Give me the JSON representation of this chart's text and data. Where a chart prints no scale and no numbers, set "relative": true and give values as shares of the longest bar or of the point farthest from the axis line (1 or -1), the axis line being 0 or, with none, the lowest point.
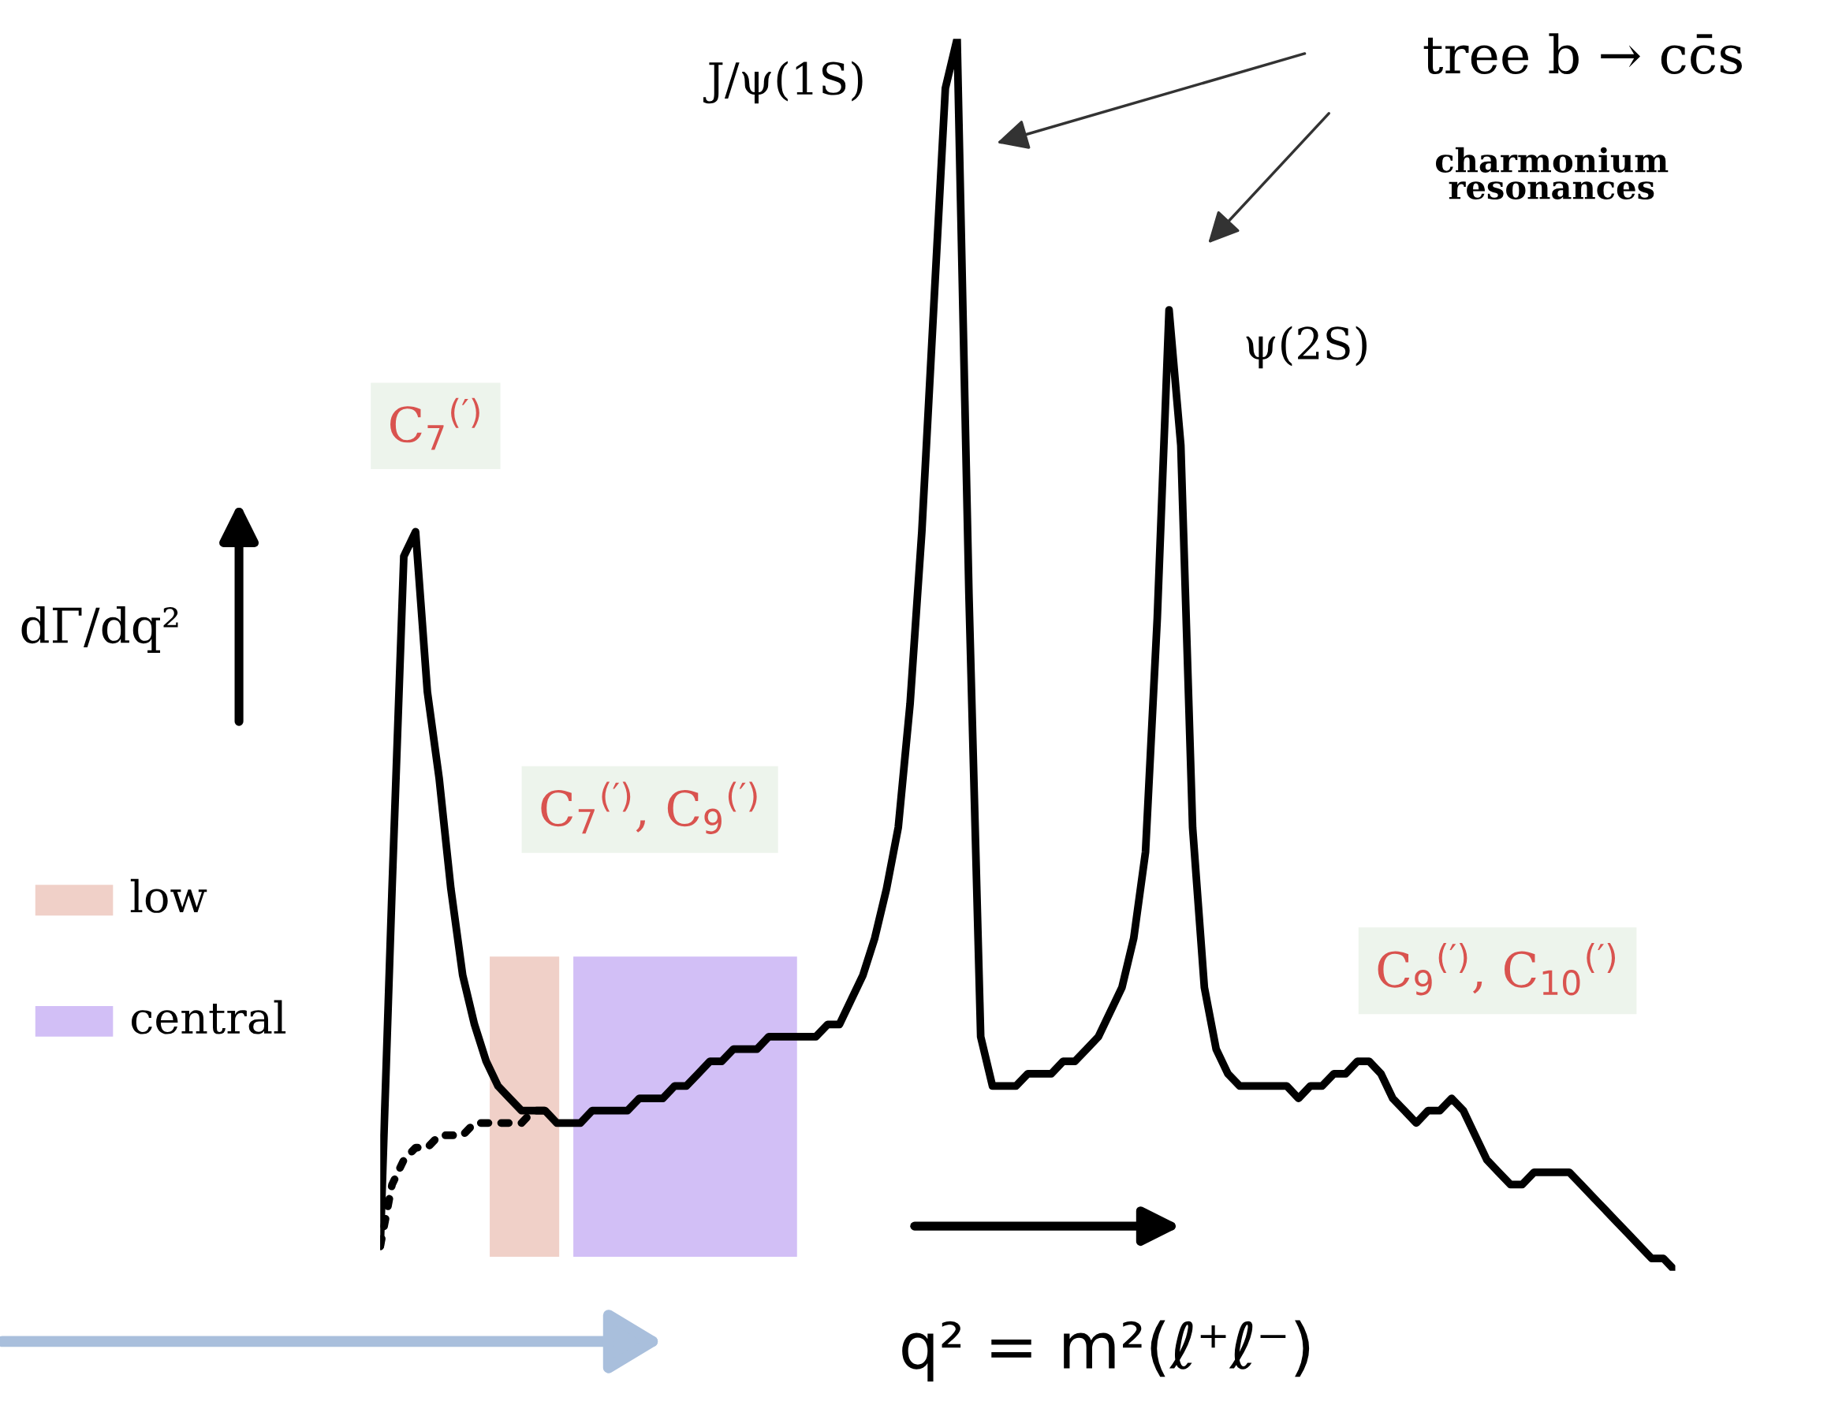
{
  "chart_data": {
    "type": "line",
    "relative": true,
    "xlabel": "q² = m²(ℓ⁺ℓ⁻)",
    "ylabel": "dΓ/dq²",
    "categories": [
      null,
      null,
      null,
      null,
      null,
      null,
      null,
      null,
      null,
      null,
      null,
      null,
      null,
      null,
      null,
      null,
      null,
      null,
      null,
      null,
      null,
      null,
      null,
      null,
      null,
      null,
      null,
      null,
      null,
      null,
      null,
      null,
      null,
      null,
      null,
      null,
      null,
      null,
      null,
      null,
      null,
      null,
      null,
      null,
      null,
      null,
      null,
      null,
      null,
      null,
      null,
      null,
      null,
      null,
      null,
      null,
      null,
      null,
      null,
      null,
      null,
      null,
      null,
      null,
      null,
      null,
      null,
      null,
      null,
      null,
      null,
      null,
      null,
      null,
      null,
      null,
      null,
      null,
      null,
      null,
      null,
      null,
      null,
      null,
      null,
      null,
      null,
      null,
      null,
      null,
      null,
      null,
      null,
      null,
      null,
      null,
      null,
      null,
      null,
      null,
      null,
      null,
      null,
      null,
      null,
      null,
      null,
      null,
      null,
      null,
      null
    ],
    "series": [
      {
        "color": "#000000",
        "line_style": "solid",
        "values": [
          0.02,
          0.31,
          0.58,
          0.6,
          0.47,
          0.4,
          0.31,
          0.24,
          0.2,
          0.17,
          0.15,
          0.14,
          0.13,
          0.13,
          0.13,
          0.12,
          0.12,
          0.12,
          0.13,
          0.13,
          0.13,
          0.13,
          0.14,
          0.14,
          0.14,
          0.15,
          0.15,
          0.16,
          0.17,
          0.17,
          0.18,
          0.18,
          0.18,
          0.19,
          0.19,
          0.19,
          0.19,
          0.19,
          0.2,
          0.2,
          0.22,
          0.24,
          0.27,
          0.31,
          0.36,
          0.46,
          0.6,
          0.78,
          0.96,
          1.0,
          0.55,
          0.19,
          0.15,
          0.15,
          0.15,
          0.16,
          0.16,
          0.16,
          0.17,
          0.17,
          0.18,
          0.19,
          0.21,
          0.23,
          0.27,
          0.34,
          0.53,
          0.78,
          0.67,
          0.36,
          0.23,
          0.18,
          0.16,
          0.15,
          0.15,
          0.15,
          0.15,
          0.15,
          0.14,
          0.15,
          0.15,
          0.16,
          0.16,
          0.17,
          0.17,
          0.16,
          0.14,
          0.13,
          0.12,
          0.13,
          0.13,
          0.14,
          0.13,
          0.11,
          0.09,
          0.08,
          0.07,
          0.07,
          0.08,
          0.08,
          0.08,
          0.08,
          0.07,
          0.06,
          0.05,
          0.04,
          0.03,
          0.02,
          0.01,
          0.01,
          0
        ]
      },
      {
        "color": "#000000",
        "line_style": "dotted",
        "values": [
          0.02,
          0.07,
          0.09,
          0.1,
          0.1,
          0.11,
          0.11,
          0.11,
          0.12,
          0.12,
          0.12,
          0.12,
          0.12,
          0.13,
          0.13,
          null,
          null,
          null,
          null,
          null,
          null,
          null,
          null,
          null,
          null,
          null,
          null,
          null,
          null,
          null,
          null,
          null,
          null,
          null,
          null,
          null,
          null,
          null,
          null,
          null,
          null,
          null,
          null,
          null,
          null,
          null,
          null,
          null,
          null,
          null,
          null,
          null,
          null,
          null,
          null,
          null,
          null,
          null,
          null,
          null,
          null,
          null,
          null,
          null,
          null,
          null,
          null,
          null,
          null,
          null,
          null,
          null,
          null,
          null,
          null,
          null,
          null,
          null,
          null,
          null,
          null,
          null,
          null,
          null,
          null,
          null,
          null,
          null,
          null,
          null,
          null,
          null,
          null,
          null,
          null,
          null,
          null,
          null,
          null,
          null,
          null,
          null,
          null,
          null,
          null,
          null,
          null,
          null,
          null,
          null,
          null
        ]
      }
    ],
    "annotations": [
      "low",
      "central",
      "J/ψ(1S)",
      "ψ(2S)",
      "tree b → cc̄s",
      "charmonium\nresonances",
      "C$_{7}$$^{(′)}$",
      "C$_{7}$$^{(′)}$, C$_{9}$$^{(′)}$",
      "C$_{9}$$^{(′)}$, C$_{10}$$^{(′)}$"
    ]
  }
}
